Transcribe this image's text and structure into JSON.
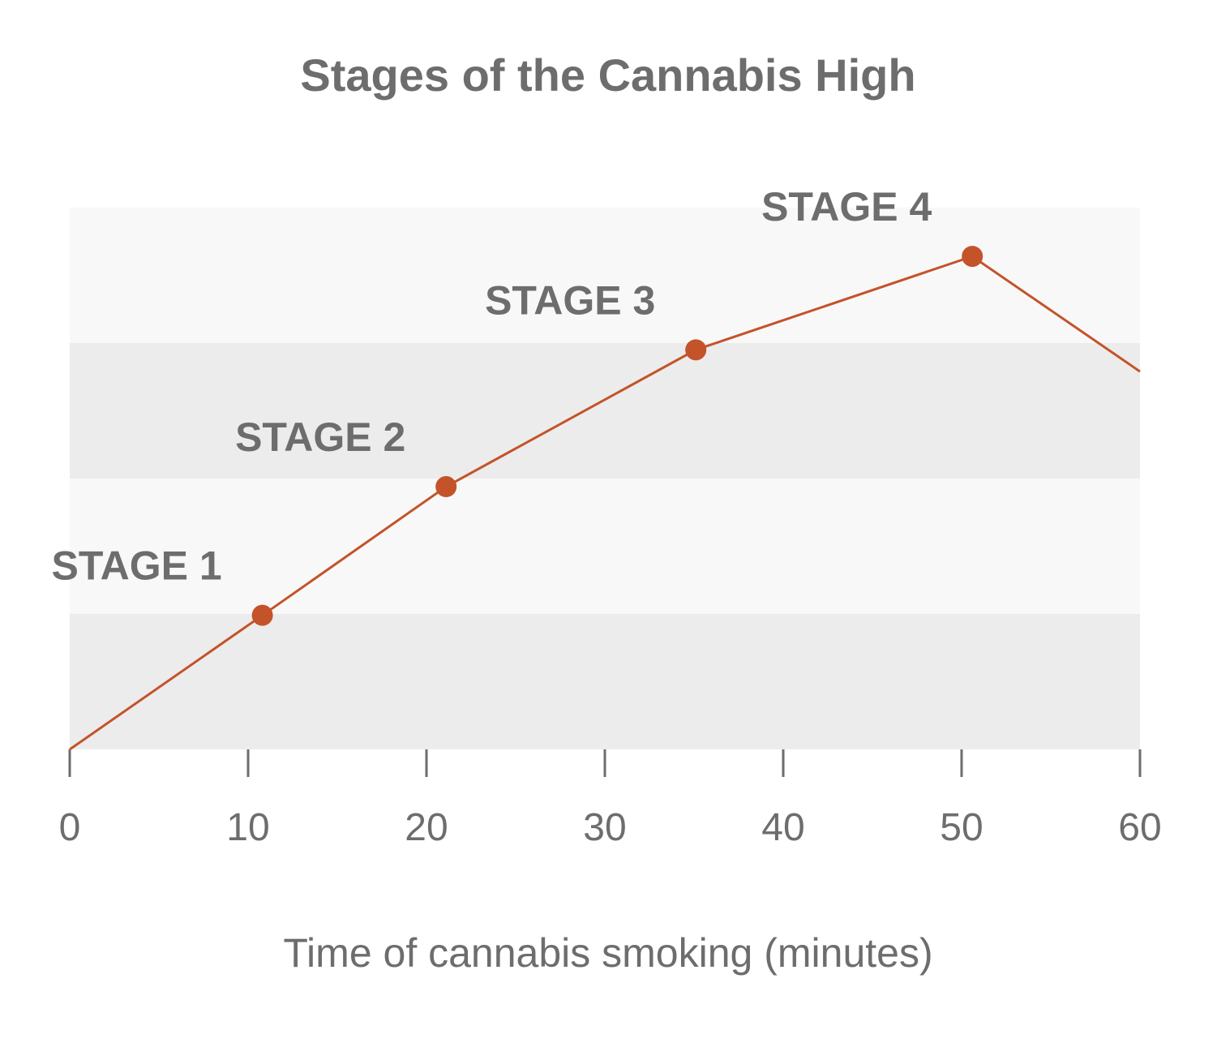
{
  "chart_data": {
    "type": "line",
    "title": "Stages of the Cannabis High",
    "xlabel": "Time of cannabis smoking (minutes)",
    "ylabel": "",
    "xlim": [
      0,
      60
    ],
    "ylim": [
      0,
      4
    ],
    "x_ticks": [
      "0",
      "10",
      "20",
      "30",
      "40",
      "50",
      "60"
    ],
    "y_ticks_visible": false,
    "grid": "alternating horizontal bands",
    "legend": "none",
    "series": [
      {
        "color": "#c4532a",
        "points": [
          {
            "x": 0,
            "y": 0
          },
          {
            "x": 10.8,
            "y": 0.99
          },
          {
            "x": 21.1,
            "y": 1.94
          },
          {
            "x": 35.1,
            "y": 2.95
          },
          {
            "x": 50.6,
            "y": 3.64
          },
          {
            "x": 60,
            "y": 2.79
          }
        ],
        "markers": [
          {
            "x": 10.8,
            "y": 0.99,
            "label": "STAGE 1"
          },
          {
            "x": 21.1,
            "y": 1.94,
            "label": "STAGE 2"
          },
          {
            "x": 35.1,
            "y": 2.95,
            "label": "STAGE 3"
          },
          {
            "x": 50.6,
            "y": 3.64,
            "label": "STAGE 4"
          }
        ]
      }
    ],
    "colors": {
      "line": "#c4532a",
      "band_dark": "#ececec",
      "band_light": "#f8f8f8",
      "text": "#6d6d6d",
      "tick": "#6d6d6d"
    }
  }
}
